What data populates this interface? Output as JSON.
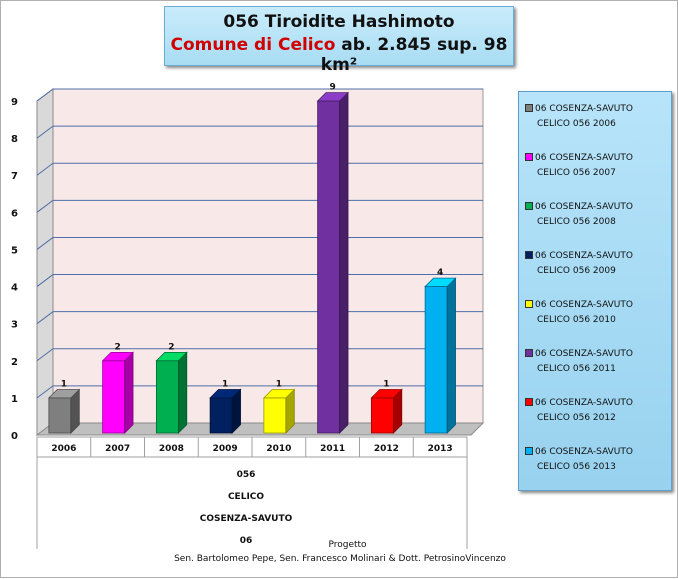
{
  "title": {
    "line1": "056 Tiroidite Hashimoto",
    "comune": "Comune di Celico",
    "rest": " ab. 2.845  sup. 98 km²"
  },
  "chart_data": {
    "type": "bar",
    "categories": [
      "2006",
      "2007",
      "2008",
      "2009",
      "2010",
      "2011",
      "2012",
      "2013"
    ],
    "values": [
      1,
      2,
      2,
      1,
      1,
      9,
      1,
      4
    ],
    "colors": [
      "#7f7f7f",
      "#ff00ff",
      "#00b050",
      "#002060",
      "#ffff00",
      "#7030a0",
      "#ff0000",
      "#00b0f0"
    ],
    "ylim": [
      0,
      9
    ],
    "yticks": [
      "0",
      "1",
      "2",
      "3",
      "4",
      "5",
      "6",
      "7",
      "8",
      "9"
    ],
    "grid": true,
    "legend_placement": "right",
    "legend": [
      {
        "line1": "06 COSENZA-SAVUTO",
        "line2": "CELICO 056 2006"
      },
      {
        "line1": "06 COSENZA-SAVUTO",
        "line2": "CELICO 056 2007"
      },
      {
        "line1": "06 COSENZA-SAVUTO",
        "line2": "CELICO 056 2008"
      },
      {
        "line1": "06 COSENZA-SAVUTO",
        "line2": "CELICO 056 2009"
      },
      {
        "line1": "06 COSENZA-SAVUTO",
        "line2": "CELICO 056 2010"
      },
      {
        "line1": "06 COSENZA-SAVUTO",
        "line2": "CELICO 056 2011"
      },
      {
        "line1": "06 COSENZA-SAVUTO",
        "line2": "CELICO 056 2012"
      },
      {
        "line1": "06 COSENZA-SAVUTO",
        "line2": "CELICO 056 2013"
      }
    ],
    "group_labels": [
      "056",
      "CELICO",
      "COSENZA-SAVUTO",
      "06"
    ]
  },
  "footer": {
    "line1": "Progetto",
    "line2": "Sen. Bartolomeo Pepe, Sen. Francesco Molinari & Dott. PetrosinoVincenzo"
  }
}
